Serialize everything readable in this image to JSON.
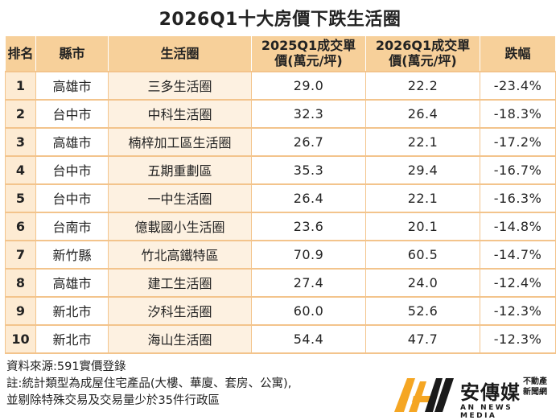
{
  "title": "2026Q1十大房價下跌生活圈",
  "table": {
    "headers": {
      "rank": "排名",
      "county": "縣市",
      "district": "生活圈",
      "price_2025_line1": "2025Q1成交單",
      "price_2025_line2": "價(萬元/坪)",
      "price_2026_line1": "2026Q1成交單",
      "price_2026_line2": "價(萬元/坪)",
      "change": "跌幅"
    },
    "rows": [
      {
        "rank": "1",
        "county": "高雄市",
        "district": "三多生活圈",
        "p2025": "29.0",
        "p2026": "22.2",
        "change": "-23.4%"
      },
      {
        "rank": "2",
        "county": "台中市",
        "district": "中科生活圈",
        "p2025": "32.3",
        "p2026": "26.4",
        "change": "-18.3%"
      },
      {
        "rank": "3",
        "county": "高雄市",
        "district": "楠梓加工區生活圈",
        "p2025": "26.7",
        "p2026": "22.1",
        "change": "-17.2%"
      },
      {
        "rank": "4",
        "county": "台中市",
        "district": "五期重劃區",
        "p2025": "35.3",
        "p2026": "29.4",
        "change": "-16.7%"
      },
      {
        "rank": "5",
        "county": "台中市",
        "district": "一中生活圈",
        "p2025": "26.4",
        "p2026": "22.1",
        "change": "-16.3%"
      },
      {
        "rank": "6",
        "county": "台南市",
        "district": "億載國小生活圈",
        "p2025": "23.6",
        "p2026": "20.1",
        "change": "-14.8%"
      },
      {
        "rank": "7",
        "county": "新竹縣",
        "district": "竹北高鐵特區",
        "p2025": "70.9",
        "p2026": "60.5",
        "change": "-14.7%"
      },
      {
        "rank": "8",
        "county": "高雄市",
        "district": "建工生活圈",
        "p2025": "27.4",
        "p2026": "24.0",
        "change": "-12.4%"
      },
      {
        "rank": "9",
        "county": "新北市",
        "district": "汐科生活圈",
        "p2025": "60.0",
        "p2026": "52.6",
        "change": "-12.3%"
      },
      {
        "rank": "10",
        "county": "新北市",
        "district": "海山生活圈",
        "p2025": "54.4",
        "p2026": "47.7",
        "change": "-12.3%"
      }
    ]
  },
  "notes": {
    "source": "資料來源:591實價登錄",
    "note_line1": "註:統計類型為成屋住宅產品(大樓、華廈、套房、公寓),",
    "note_line2": "並剔除特殊交易及交易量少於35件行政區"
  },
  "logo": {
    "name": "安傳媒",
    "side_line1": "不動產",
    "side_line2": "新聞網",
    "subtitle": "AN NEWS MEDIA",
    "colors": {
      "orange": "#f5a623",
      "dark": "#1a1a1a"
    }
  },
  "colors": {
    "header_bg": "#f7d09a",
    "rank_bg": "#fdebd3",
    "district_bg": "#fdf1e1",
    "border": "#f3c48c"
  }
}
